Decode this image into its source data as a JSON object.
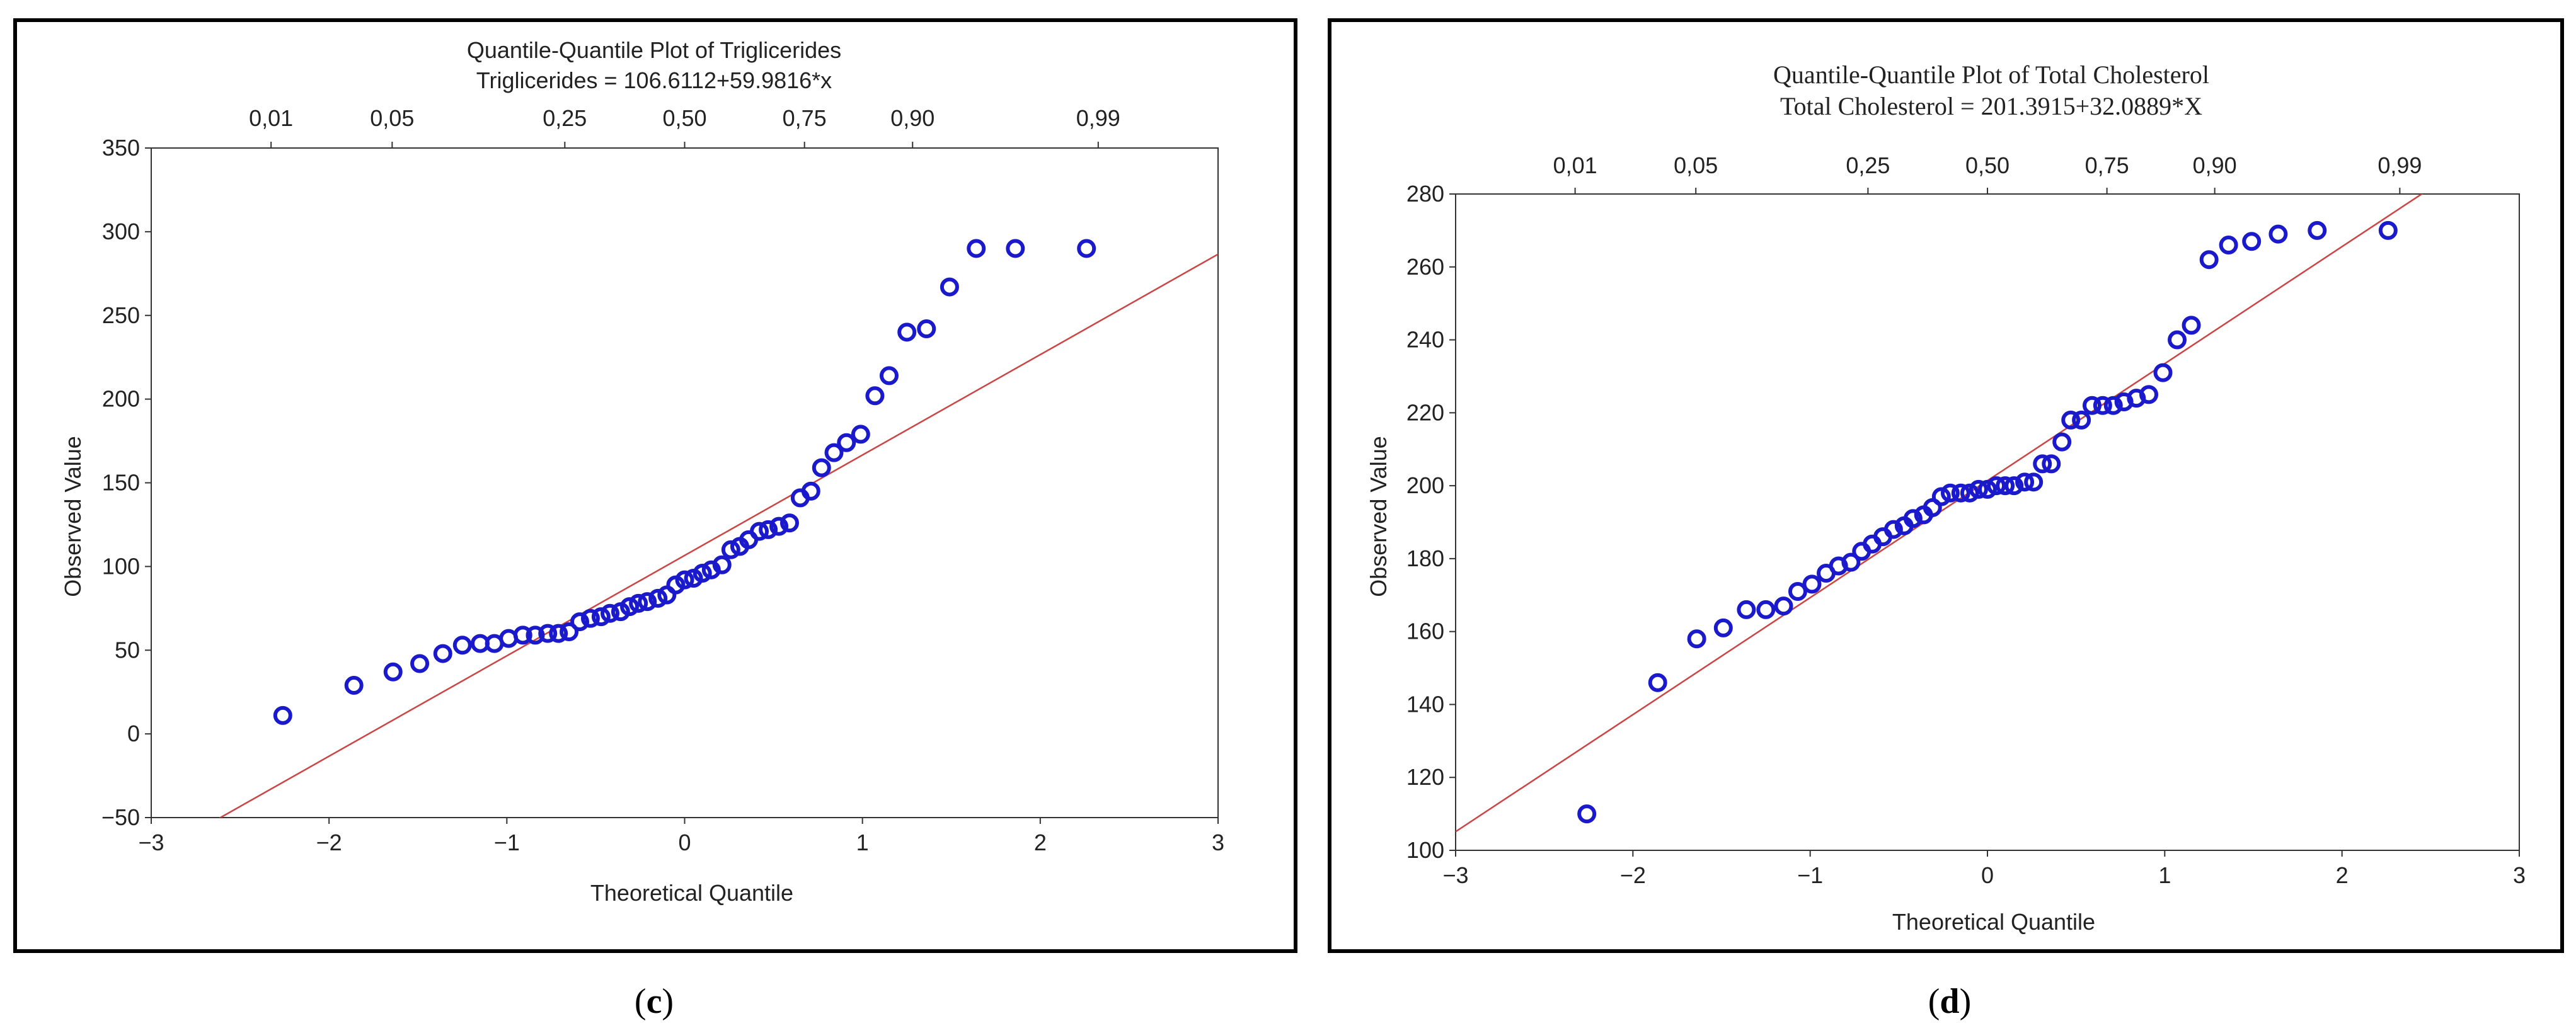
{
  "colors": {
    "frame": "#000000",
    "marker": "#1a1acc",
    "fit_line": "#cc4444",
    "axis": "#333333"
  },
  "chart_data": [
    {
      "type": "scatter",
      "panel_label_open": "(",
      "panel_label_letter": "c",
      "panel_label_close": ")",
      "title": "Quantile-Quantile Plot of Triglicerides",
      "subtitle": "Triglicerides = 106.6112+59.9816*x",
      "xlabel": "Theoretical Quantile",
      "ylabel": "Observed Value",
      "xlim": [
        -3,
        3
      ],
      "ylim": [
        -50,
        350
      ],
      "xticks": [
        -3,
        -2,
        -1,
        0,
        1,
        2,
        3
      ],
      "xtick_labels": [
        "−3",
        "−2",
        "−1",
        "0",
        "1",
        "2",
        "3"
      ],
      "yticks": [
        -50,
        0,
        50,
        100,
        150,
        200,
        250,
        300,
        350
      ],
      "ytick_labels": [
        "−50",
        "0",
        "50",
        "100",
        "150",
        "200",
        "250",
        "300",
        "350"
      ],
      "top_axis": {
        "ticks": [
          -2.326,
          -1.645,
          -0.674,
          0,
          0.674,
          1.282,
          2.326
        ],
        "labels": [
          "0,01",
          "0,05",
          "0,25",
          "0,50",
          "0,75",
          "0,90",
          "0,99"
        ]
      },
      "fit": {
        "intercept": 106.6112,
        "slope": 59.9816
      },
      "x": [
        -2.26,
        -1.86,
        -1.64,
        -1.49,
        -1.36,
        -1.25,
        -1.15,
        -1.07,
        -0.99,
        -0.91,
        -0.84,
        -0.77,
        -0.71,
        -0.65,
        -0.59,
        -0.53,
        -0.47,
        -0.42,
        -0.36,
        -0.31,
        -0.26,
        -0.21,
        -0.15,
        -0.1,
        -0.05,
        0,
        0.05,
        0.1,
        0.15,
        0.21,
        0.26,
        0.31,
        0.36,
        0.42,
        0.47,
        0.53,
        0.59,
        0.65,
        0.71,
        0.77,
        0.84,
        0.91,
        0.99,
        1.07,
        1.15,
        1.25,
        1.36,
        1.49,
        1.64,
        1.86,
        2.26
      ],
      "y": [
        11,
        29,
        37,
        42,
        48,
        53,
        54,
        54,
        57,
        59,
        59,
        60,
        60,
        61,
        67,
        69,
        70,
        72,
        73,
        76,
        78,
        79,
        81,
        83,
        89,
        92,
        93,
        96,
        98,
        101,
        110,
        112,
        116,
        121,
        122,
        124,
        126,
        141,
        145,
        159,
        168,
        174,
        179,
        202,
        214,
        240,
        242,
        267,
        290,
        290,
        290
      ]
    },
    {
      "type": "scatter",
      "panel_label_open": "(",
      "panel_label_letter": "d",
      "panel_label_close": ")",
      "title": "Quantile-Quantile Plot of Total Cholesterol",
      "subtitle": "Total Cholesterol = 201.3915+32.0889*X",
      "xlabel": "Theoretical Quantile",
      "ylabel": "Observed Value",
      "xlim": [
        -3,
        3
      ],
      "ylim": [
        100,
        280
      ],
      "xticks": [
        -3,
        -2,
        -1,
        0,
        1,
        2,
        3
      ],
      "xtick_labels": [
        "−3",
        "−2",
        "−1",
        "0",
        "1",
        "2",
        "3"
      ],
      "yticks": [
        100,
        120,
        140,
        160,
        180,
        200,
        220,
        240,
        260,
        280
      ],
      "ytick_labels": [
        "100",
        "120",
        "140",
        "160",
        "180",
        "200",
        "220",
        "240",
        "260",
        "280"
      ],
      "top_axis": {
        "ticks": [
          -2.326,
          -1.645,
          -0.674,
          0,
          0.674,
          1.282,
          2.326
        ],
        "labels": [
          "0,01",
          "0,05",
          "0,25",
          "0,50",
          "0,75",
          "0,90",
          "0,99"
        ]
      },
      "fit": {
        "intercept": 201.3915,
        "slope": 32.0889
      },
      "x": [
        -2.26,
        -1.86,
        -1.64,
        -1.49,
        -1.36,
        -1.25,
        -1.15,
        -1.07,
        -0.99,
        -0.91,
        -0.84,
        -0.77,
        -0.71,
        -0.65,
        -0.59,
        -0.53,
        -0.47,
        -0.42,
        -0.36,
        -0.31,
        -0.26,
        -0.21,
        -0.15,
        -0.1,
        -0.05,
        0,
        0.05,
        0.1,
        0.15,
        0.21,
        0.26,
        0.31,
        0.36,
        0.42,
        0.47,
        0.53,
        0.59,
        0.65,
        0.71,
        0.77,
        0.84,
        0.91,
        0.99,
        1.07,
        1.15,
        1.25,
        1.36,
        1.49,
        1.64,
        1.86,
        2.26
      ],
      "y": [
        110,
        146,
        158,
        161,
        166,
        166,
        167,
        171,
        173,
        176,
        178,
        179,
        182,
        184,
        186,
        188,
        189,
        191,
        192,
        194,
        197,
        198,
        198,
        198,
        199,
        199,
        200,
        200,
        200,
        201,
        201,
        206,
        206,
        212,
        218,
        218,
        222,
        222,
        222,
        223,
        224,
        225,
        231,
        240,
        244,
        262,
        266,
        267,
        269,
        270,
        270
      ]
    }
  ]
}
